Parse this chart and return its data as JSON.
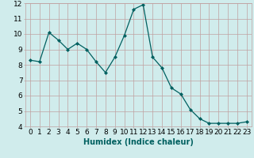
{
  "x": [
    0,
    1,
    2,
    3,
    4,
    5,
    6,
    7,
    8,
    9,
    10,
    11,
    12,
    13,
    14,
    15,
    16,
    17,
    18,
    19,
    20,
    21,
    22,
    23
  ],
  "y": [
    8.3,
    8.2,
    10.1,
    9.6,
    9.0,
    9.4,
    9.0,
    8.2,
    7.5,
    8.5,
    9.9,
    11.6,
    11.9,
    8.5,
    7.8,
    6.5,
    6.1,
    5.1,
    4.5,
    4.2,
    4.2,
    4.2,
    4.2,
    4.3
  ],
  "line_color": "#006060",
  "marker": "D",
  "marker_size": 2.0,
  "bg_color": "#d0ecec",
  "grid_color": "#c0a0a0",
  "xlabel": "Humidex (Indice chaleur)",
  "xlim": [
    -0.5,
    23.5
  ],
  "ylim": [
    4,
    12
  ],
  "yticks": [
    4,
    5,
    6,
    7,
    8,
    9,
    10,
    11,
    12
  ],
  "xticks": [
    0,
    1,
    2,
    3,
    4,
    5,
    6,
    7,
    8,
    9,
    10,
    11,
    12,
    13,
    14,
    15,
    16,
    17,
    18,
    19,
    20,
    21,
    22,
    23
  ],
  "xlabel_fontsize": 7,
  "tick_fontsize": 6.5
}
